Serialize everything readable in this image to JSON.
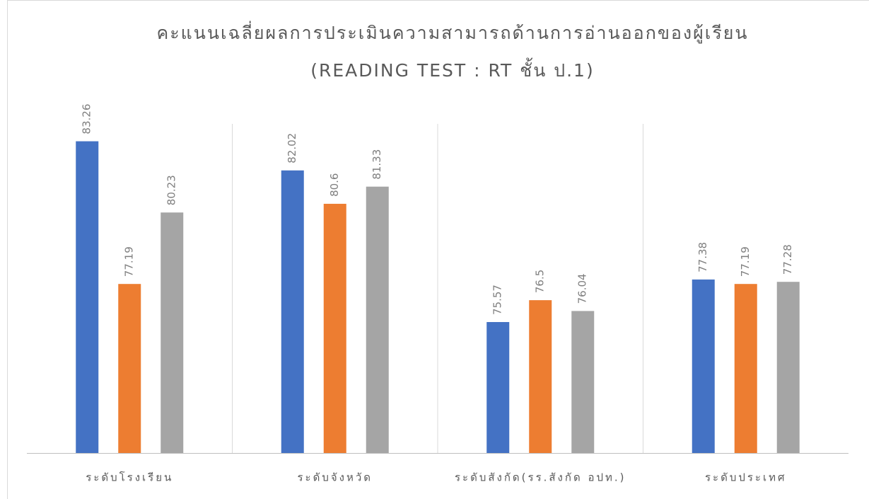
{
  "chart_data": {
    "type": "bar",
    "title": "คะแนนเฉลี่ยผลการประเมินความสามารถด้านการอ่านออกของผู้เรียน",
    "subtitle": "(READING TEST : RT ชั้น ป.1)",
    "categories": [
      "ระดับโรงเรียน",
      "ระดับจังหวัด",
      "ระดับสังกัด(รร.สังกัด อปท.)",
      "ระดับประเทศ"
    ],
    "series": [
      {
        "color": "#4472c4",
        "values": [
          83.26,
          82.02,
          75.57,
          77.38
        ]
      },
      {
        "color": "#ed7d31",
        "values": [
          77.19,
          80.6,
          76.5,
          77.19
        ]
      },
      {
        "color": "#a5a5a5",
        "values": [
          80.23,
          81.33,
          76.04,
          77.28
        ]
      }
    ],
    "ylim": [
      70,
      84
    ]
  }
}
